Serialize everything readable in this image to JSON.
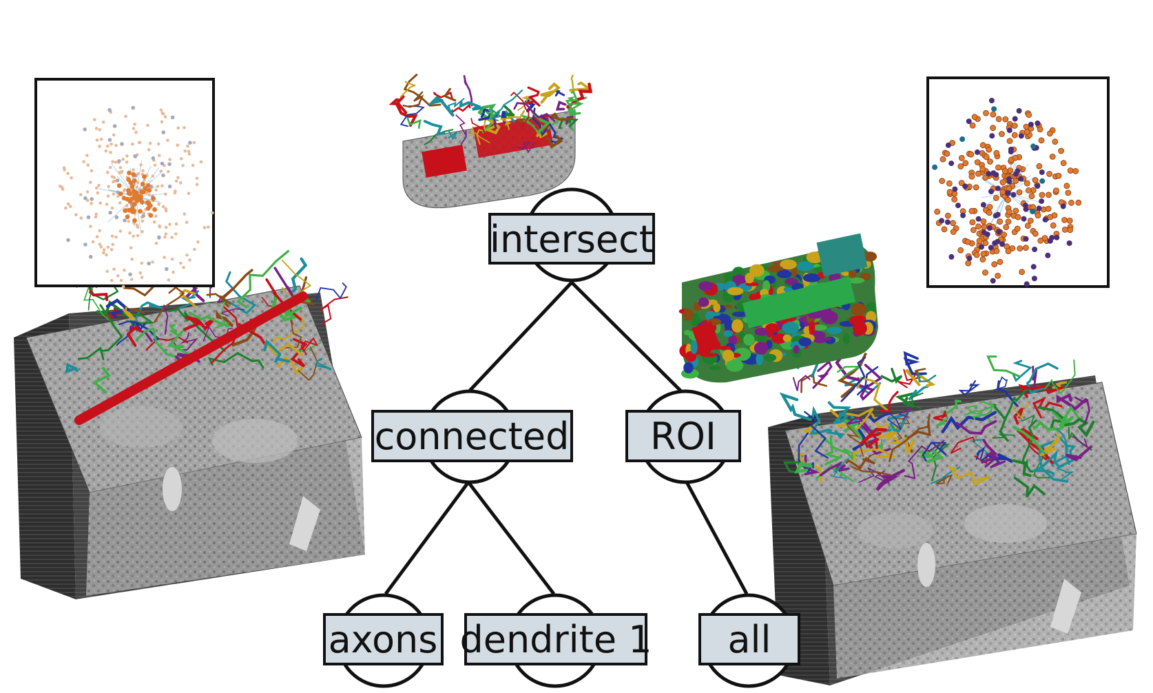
{
  "tree": {
    "nodes": {
      "intersect": "intersect",
      "connected": "connected",
      "roi": "ROI",
      "axons": "axons",
      "dendrite": "dendrite 1",
      "all": "all"
    },
    "edges": [
      [
        "intersect",
        "connected"
      ],
      [
        "intersect",
        "roi"
      ],
      [
        "connected",
        "axons"
      ],
      [
        "connected",
        "dendrite"
      ],
      [
        "roi",
        "all"
      ]
    ]
  },
  "colors": {
    "node_fill": "#d3dbe3",
    "node_stroke": "#111111",
    "edge": "#111111",
    "em_gray": "#9a9a9a",
    "stack_dark": "#2b2b2b",
    "scatter_orange": "#e07a2e",
    "scatter_light_orange": "#e9b896",
    "scatter_gray": "#a7a7bb",
    "scatter_purple": "#4a2f7a",
    "neurite_palette": [
      "#c8101a",
      "#1c7f2c",
      "#2035a0",
      "#7a1f86",
      "#c9a21b",
      "#1a8f9a",
      "#8a4a14",
      "#3fb046"
    ]
  },
  "panels": {
    "left_graph_icon": "scatter-graph-icon",
    "right_graph_icon": "scatter-graph-icon",
    "em_volume_icon": "em-volume-icon",
    "reconstruction_icon": "neuron-reconstruction-icon"
  }
}
